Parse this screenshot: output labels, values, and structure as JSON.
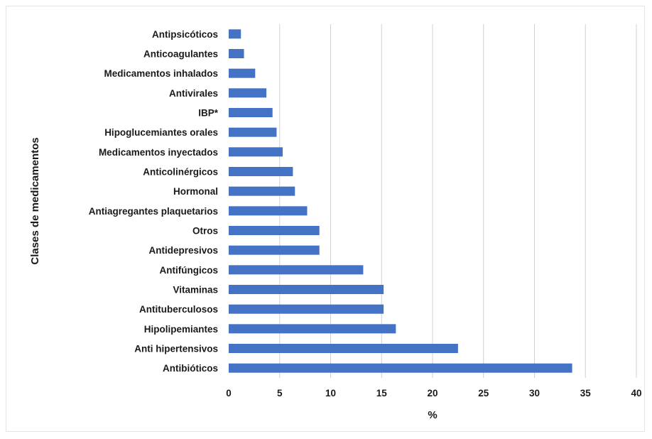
{
  "chart_data": {
    "type": "bar",
    "orientation": "horizontal",
    "title": "",
    "xlabel": "%",
    "ylabel": "Clases de medicamentos",
    "xlim": [
      0,
      40
    ],
    "xticks": [
      "0",
      "5",
      "10",
      "15",
      "20",
      "25",
      "30",
      "35",
      "40"
    ],
    "grid": "vertical",
    "bar_color": "#4472C4",
    "categories": [
      "Antipsicóticos",
      "Anticoagulantes",
      "Medicamentos inhalados",
      "Antivirales",
      "IBP*",
      "Hipoglucemiantes orales",
      "Medicamentos inyectados",
      "Anticolinérgicos",
      "Hormonal",
      "Antiagregantes plaquetarios",
      "Otros",
      "Antidepresivos",
      "Antifúngicos",
      "Vitaminas",
      "Antituberculosos",
      "Hipolipemiantes",
      "Anti hipertensivos",
      "Antibióticos"
    ],
    "values": [
      1.2,
      1.5,
      2.6,
      3.7,
      4.3,
      4.7,
      5.3,
      6.3,
      6.5,
      7.7,
      8.9,
      8.9,
      13.2,
      15.2,
      15.2,
      16.4,
      22.5,
      33.7
    ]
  }
}
